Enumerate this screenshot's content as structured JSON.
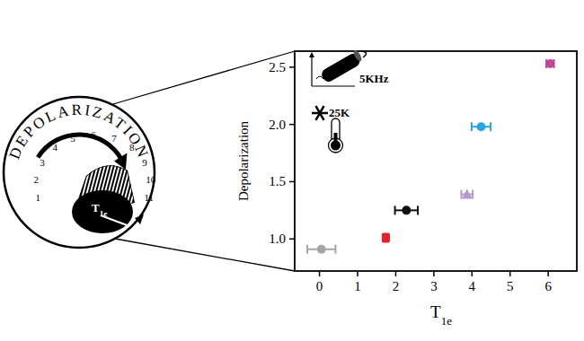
{
  "chart_data": {
    "type": "scatter",
    "x_label": "T1e",
    "y_label": "Depolarization",
    "annotations": [
      "5KHz",
      "25K"
    ],
    "xlim": [
      -0.65,
      6.75
    ],
    "xticks": [
      0,
      1,
      2,
      3,
      4,
      5,
      6
    ],
    "ylim": [
      0.72,
      2.64
    ],
    "yticks": [
      {
        "value": 1,
        "label": "1.0"
      },
      1.5,
      {
        "value": 2,
        "label": "2.0"
      },
      2.5
    ],
    "grid": false,
    "series": [
      {
        "color": "#a6a6a6",
        "marker": "circle",
        "x": [
          0.05
        ],
        "values": [
          0.91
        ],
        "x_error": [
          0.37
        ]
      },
      {
        "color": "#e8202a",
        "marker": "square",
        "x": [
          1.74
        ],
        "values": [
          1.01
        ],
        "x_error": [
          0.07
        ]
      },
      {
        "color": "#111111",
        "marker": "circle",
        "x": [
          2.28
        ],
        "values": [
          1.25
        ],
        "x_error": [
          0.3
        ]
      },
      {
        "color": "#b39bc9",
        "marker": "triangle",
        "x": [
          3.87
        ],
        "values": [
          1.39
        ],
        "x_error": [
          0.15
        ]
      },
      {
        "color": "#2ba3dd",
        "marker": "circle",
        "x": [
          4.24
        ],
        "values": [
          1.98
        ],
        "x_error": [
          0.25
        ]
      },
      {
        "color": "#c2459b",
        "marker": "circle",
        "x": [
          6.05
        ],
        "values": [
          2.53
        ],
        "x_error": [
          0.1
        ]
      }
    ]
  },
  "dial": {
    "title": "DEPOLARIZATION",
    "labels": [
      1,
      2,
      3,
      4,
      5,
      6,
      7,
      8,
      9,
      10,
      11
    ],
    "knob_label": "T1e"
  }
}
